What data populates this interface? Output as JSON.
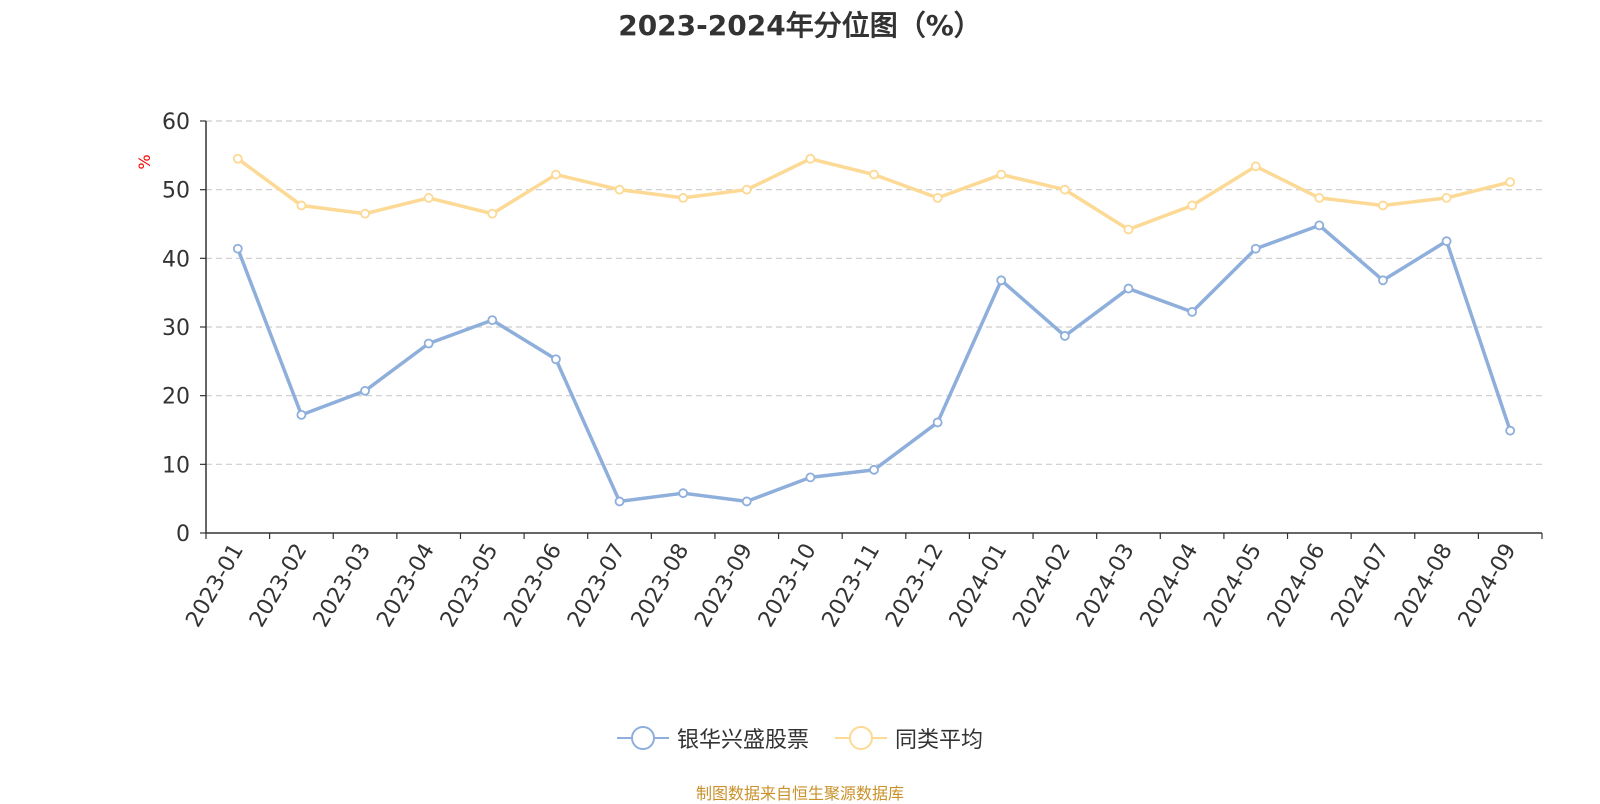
{
  "chart_data": {
    "type": "line",
    "title": "2023-2024年分位图（%）",
    "ylabel": "%",
    "xlabel": "",
    "ylim": [
      0,
      60
    ],
    "yticks": [
      0,
      10,
      20,
      30,
      40,
      50,
      60
    ],
    "grid": true,
    "legend_position": "bottom",
    "categories": [
      "2023-01",
      "2023-02",
      "2023-03",
      "2023-04",
      "2023-05",
      "2023-06",
      "2023-07",
      "2023-08",
      "2023-09",
      "2023-10",
      "2023-11",
      "2023-12",
      "2024-01",
      "2024-02",
      "2024-03",
      "2024-04",
      "2024-05",
      "2024-06",
      "2024-07",
      "2024-08",
      "2024-09"
    ],
    "series": [
      {
        "name": "银华兴盛股票",
        "color": "#8eaedb",
        "values": [
          41.4,
          17.2,
          20.7,
          27.6,
          31.0,
          25.3,
          4.6,
          5.8,
          4.6,
          8.1,
          9.2,
          16.1,
          36.8,
          28.7,
          35.6,
          32.2,
          41.4,
          44.8,
          36.8,
          42.5,
          14.9
        ]
      },
      {
        "name": "同类平均",
        "color": "#fcd994",
        "values": [
          54.5,
          47.7,
          46.5,
          48.8,
          46.5,
          52.2,
          50.0,
          48.8,
          50.0,
          54.5,
          52.2,
          48.8,
          52.2,
          50.0,
          44.2,
          47.7,
          53.4,
          48.8,
          47.7,
          48.8,
          51.1
        ]
      }
    ]
  },
  "source": "制图数据来自恒生聚源数据库"
}
